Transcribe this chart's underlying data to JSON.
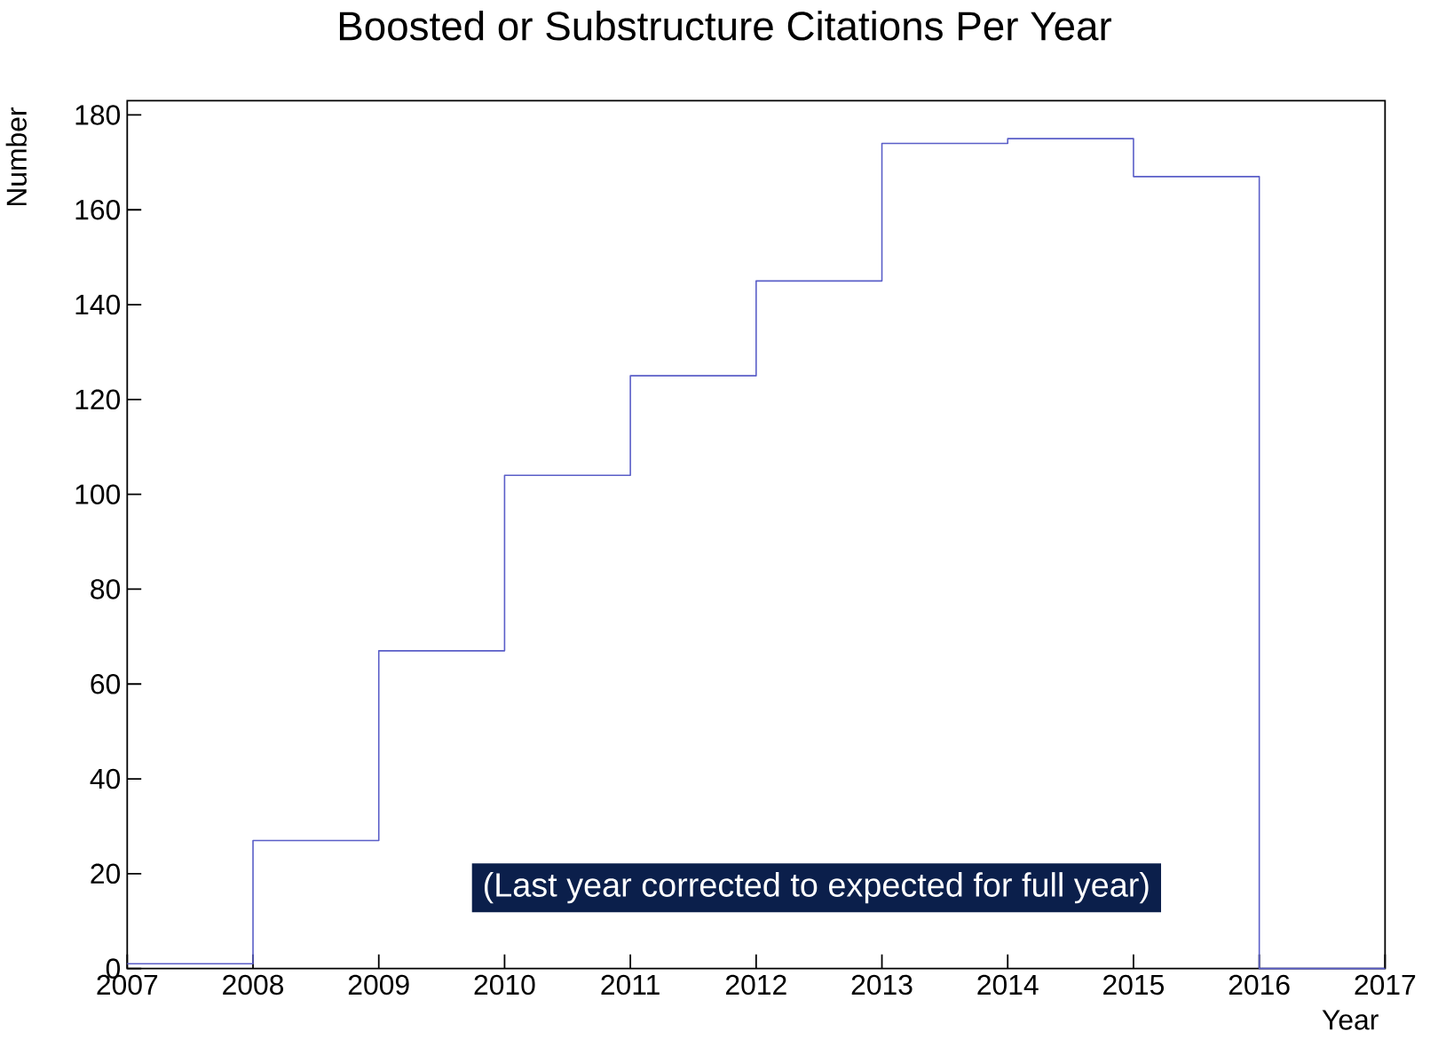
{
  "chart_data": {
    "type": "histogram",
    "title": "Boosted or Substructure Citations Per Year",
    "xlabel": "Year",
    "ylabel": "Number",
    "bins": [
      2007,
      2008,
      2009,
      2010,
      2011,
      2012,
      2013,
      2014,
      2015,
      2016,
      2017
    ],
    "values": [
      1,
      27,
      67,
      104,
      125,
      145,
      174,
      175,
      167,
      0
    ],
    "color": "#5a5ec8",
    "xlim": [
      2007,
      2017
    ],
    "ylim": [
      0,
      183
    ],
    "xticks": [
      2007,
      2008,
      2009,
      2010,
      2011,
      2012,
      2013,
      2014,
      2015,
      2016,
      2017
    ],
    "yticks": [
      0,
      20,
      40,
      60,
      80,
      100,
      120,
      140,
      160,
      180
    ],
    "annotations": [
      "(Last year corrected to expected for full year)"
    ]
  }
}
